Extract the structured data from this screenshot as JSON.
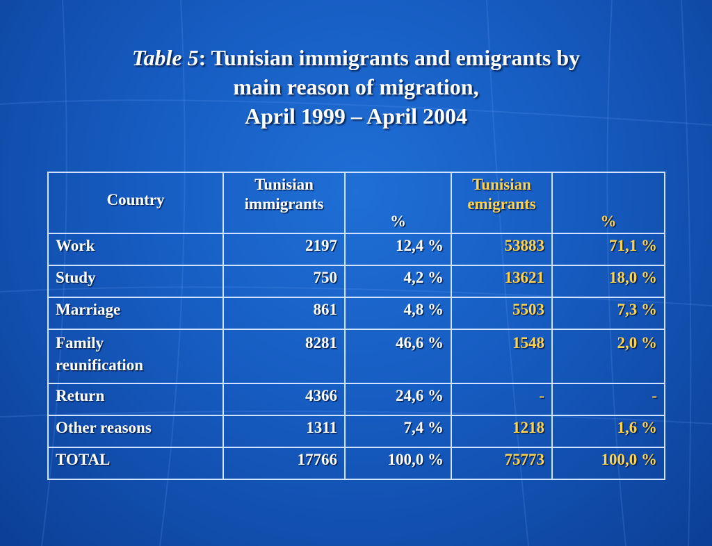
{
  "title": {
    "prefix_italic": "Table 5",
    "line1_rest": ":  Tunisian immigrants and emigrants by",
    "line2": "main reason of migration,",
    "line3": "April 1999 – April 2004"
  },
  "table": {
    "headers": {
      "country": "Country",
      "immigrants_line1": "Tunisian",
      "immigrants_line2": "immigrants",
      "pct1": "%",
      "emigrants_line1": "Tunisian",
      "emigrants_line2": "emigrants",
      "pct2": "%"
    },
    "rows": [
      {
        "reason": "Work",
        "immigrants": "2197",
        "imm_pct": "12,4 %",
        "emigrants": "53883",
        "emi_pct": "71,1 %"
      },
      {
        "reason": "Study",
        "immigrants": "750",
        "imm_pct": "4,2 %",
        "emigrants": "13621",
        "emi_pct": "18,0 %"
      },
      {
        "reason": "Marriage",
        "immigrants": "861",
        "imm_pct": "4,8 %",
        "emigrants": "5503",
        "emi_pct": "7,3 %"
      },
      {
        "reason_line1": "Family",
        "reason_line2": "reunification",
        "immigrants": "8281",
        "imm_pct": "46,6 %",
        "emigrants": "1548",
        "emi_pct": "2,0 %"
      },
      {
        "reason": "Return",
        "immigrants": "4366",
        "imm_pct": "24,6 %",
        "emigrants": "-",
        "emi_pct": "-"
      },
      {
        "reason": "Other reasons",
        "immigrants": "1311",
        "imm_pct": "7,4 %",
        "emigrants": "1218",
        "emi_pct": "1,6 %"
      },
      {
        "reason": "TOTAL",
        "immigrants": "17766",
        "imm_pct": "100,0 %",
        "emigrants": "75773",
        "emi_pct": "100,0 %"
      }
    ]
  },
  "colors": {
    "background": "#165bc0",
    "text_white": "#ffffff",
    "text_gold": "#ffd34d",
    "grid_border": "#cfe3ff"
  }
}
